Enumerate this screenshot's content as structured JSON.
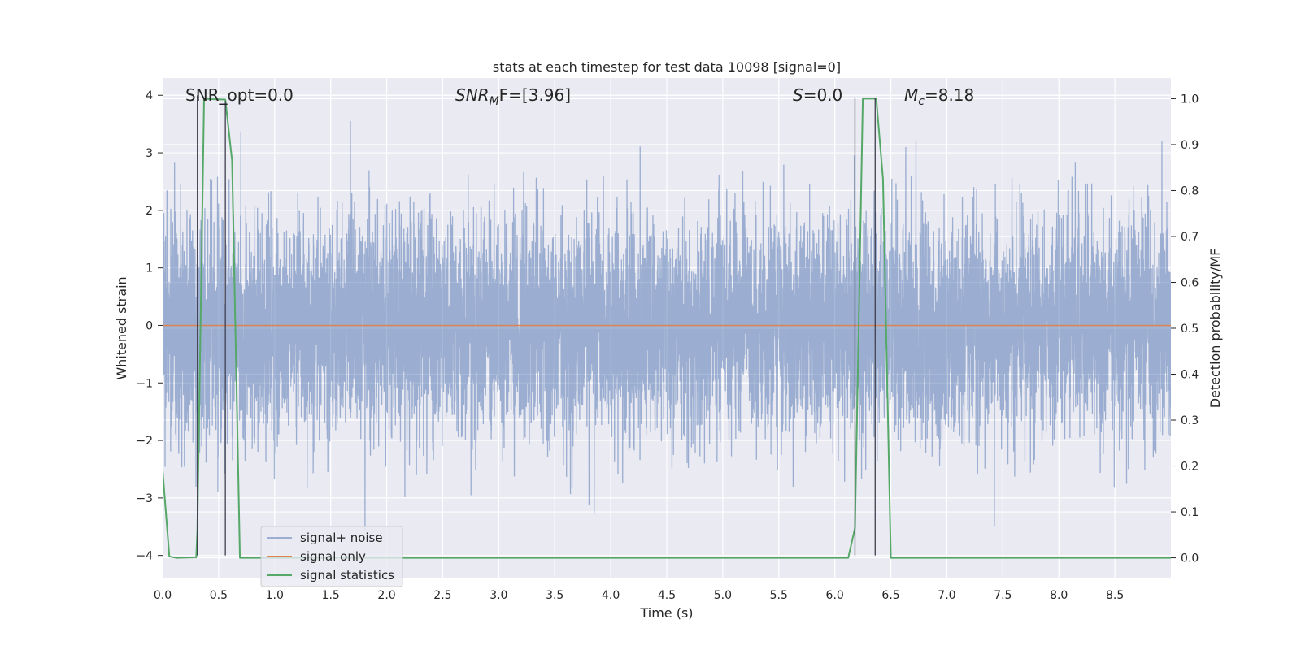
{
  "chart_data": {
    "type": "line",
    "title": "stats at each timestep for test data 10098 [signal=0]",
    "xlabel": "Time (s)",
    "ylabel": "Whitened strain",
    "y2label": "Detection probability/MF",
    "xlim": [
      0,
      9.0
    ],
    "ylim": [
      -4.4,
      4.3
    ],
    "y2lim": [
      -0.045,
      1.045
    ],
    "xticks": [
      "0.0",
      "0.5",
      "1.0",
      "1.5",
      "2.0",
      "2.5",
      "3.0",
      "3.5",
      "4.0",
      "4.5",
      "5.0",
      "5.5",
      "6.0",
      "6.5",
      "7.0",
      "7.5",
      "8.0",
      "8.5"
    ],
    "yticks": [
      "4",
      "3",
      "2",
      "1",
      "0",
      "−1",
      "−2",
      "−3",
      "−4"
    ],
    "y2ticks": [
      "1.0",
      "0.9",
      "0.8",
      "0.7",
      "0.6",
      "0.5",
      "0.4",
      "0.3",
      "0.2",
      "0.1",
      "0.0"
    ],
    "grid": true,
    "legend_position": "lower-left",
    "annotations": {
      "snr_opt": "SNR_opt=0.0",
      "snr_mf_main": "SNR",
      "snr_mf_sub": "M",
      "snr_mf_rest": "F=[3.96]",
      "s_italic": "S",
      "s_rest": "=0.0",
      "mc_main": "M",
      "mc_sub": "c",
      "mc_rest": "=8.18"
    },
    "series": [
      {
        "name": "signal+ noise",
        "color": "#4c72b0",
        "opacity": 0.5,
        "kind": "noise",
        "samples": 8192,
        "seed": 10098,
        "approx_envelope": {
          "typical_min": -2.0,
          "typical_max": 2.0,
          "extreme_min": -4.0,
          "extreme_max": 3.95
        }
      },
      {
        "name": "signal only",
        "color": "#dd8452",
        "x": [
          0.0,
          9.0
        ],
        "y": [
          0.0,
          0.0
        ]
      },
      {
        "name": "signal statistics",
        "color": "#55a868",
        "axis": "right",
        "x": [
          0.0,
          0.06,
          0.12,
          0.3,
          0.31,
          0.37,
          0.43,
          0.56,
          0.62,
          0.69,
          6.12,
          6.18,
          6.25,
          6.31,
          6.37,
          6.43,
          6.5,
          9.0
        ],
        "y": [
          0.19,
          0.003,
          0.0,
          0.001,
          0.06,
          1.0,
          0.999,
          0.998,
          0.865,
          0.0,
          0.0,
          0.065,
          1.0,
          1.0,
          1.0,
          0.825,
          0.0,
          0.0
        ]
      }
    ],
    "vertical_markers": [
      {
        "x": 0.31,
        "y_from": -4.0,
        "y_to": 4.0
      },
      {
        "x": 0.56,
        "y_from": -4.0,
        "y_to": 3.9
      },
      {
        "x": 6.18,
        "y_from": -4.0,
        "y_to": 3.95
      },
      {
        "x": 6.36,
        "y_from": -4.0,
        "y_to": 3.95
      }
    ]
  },
  "colors": {
    "axes_bg": "#eaeaf2",
    "grid": "#ffffff",
    "text": "#262626",
    "marker": "#3f3f4f"
  }
}
